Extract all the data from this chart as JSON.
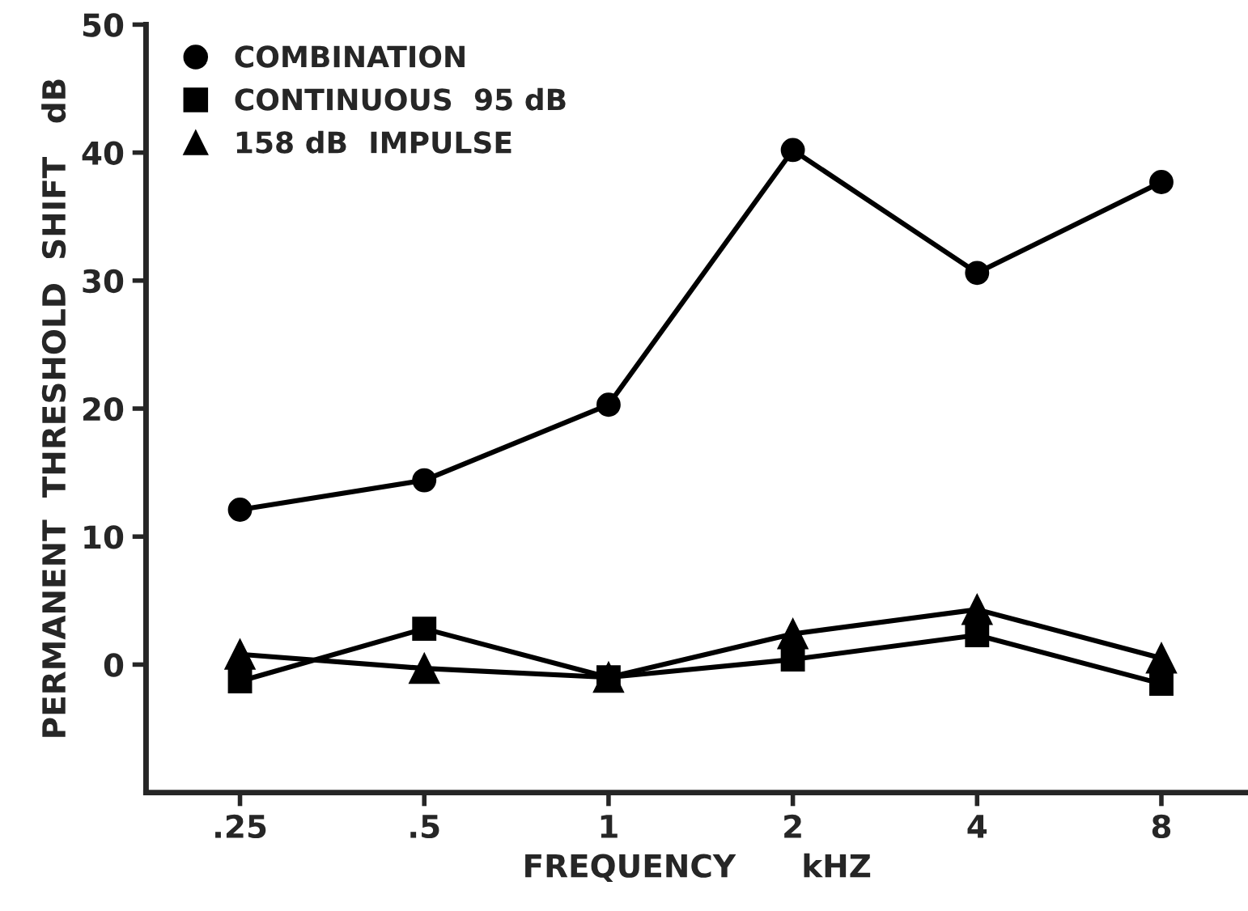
{
  "chart_data": {
    "type": "line",
    "xlabel": "FREQUENCY      kHZ",
    "ylabel": "PERMANENT  THRESHOLD  SHIFT   dB",
    "categories": [
      ".25",
      ".5",
      "1",
      "2",
      "4",
      "8"
    ],
    "series": [
      {
        "name": "COMBINATION",
        "color": "#000000",
        "marker": "circle",
        "values": [
          12.1,
          14.4,
          20.3,
          40.2,
          30.6,
          37.7
        ]
      },
      {
        "name": "CONTINUOUS  95 dB",
        "color": "#000000",
        "marker": "square",
        "values": [
          -1.3,
          2.8,
          -1.0,
          0.4,
          2.3,
          -1.5
        ]
      },
      {
        "name": "158 dB  IMPULSE",
        "color": "#000000",
        "marker": "triangle",
        "values": [
          0.8,
          -0.3,
          -1.0,
          2.4,
          4.3,
          0.5
        ]
      }
    ],
    "ylim": [
      -10,
      50
    ],
    "yticks": [
      0,
      10,
      20,
      30,
      40,
      50
    ],
    "grid": false,
    "legend": "top left",
    "line_style": "solid"
  }
}
